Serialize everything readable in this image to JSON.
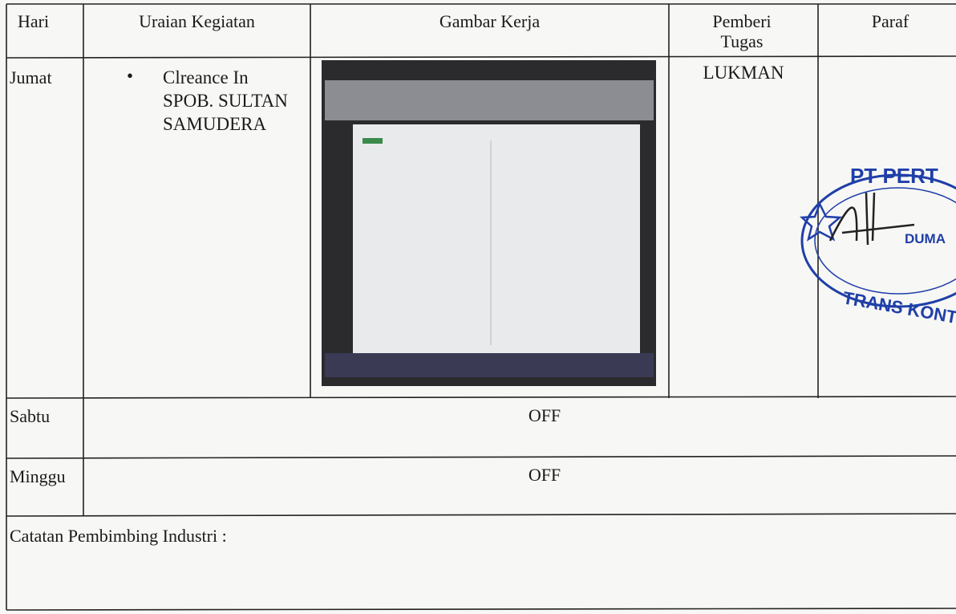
{
  "table": {
    "header": [
      "Hari",
      "Uraian Kegiatan",
      "Gambar Kerja",
      "Pemberi Tugas",
      "Paraf"
    ],
    "rows": [
      {
        "day": "Jumat",
        "activities": [
          "Clreance In SPOB. SULTAN SAMUDERA"
        ],
        "assigner": "LUKMAN"
      },
      {
        "day": "Sabtu",
        "status": "OFF"
      },
      {
        "day": "Minggu",
        "status": "OFF"
      }
    ]
  },
  "notes": {
    "label": "Catatan Pembimbing Industri :"
  },
  "stamp": {
    "top": "PT PERT",
    "middle": "DUMA",
    "bottom": "TRANS KONT"
  }
}
